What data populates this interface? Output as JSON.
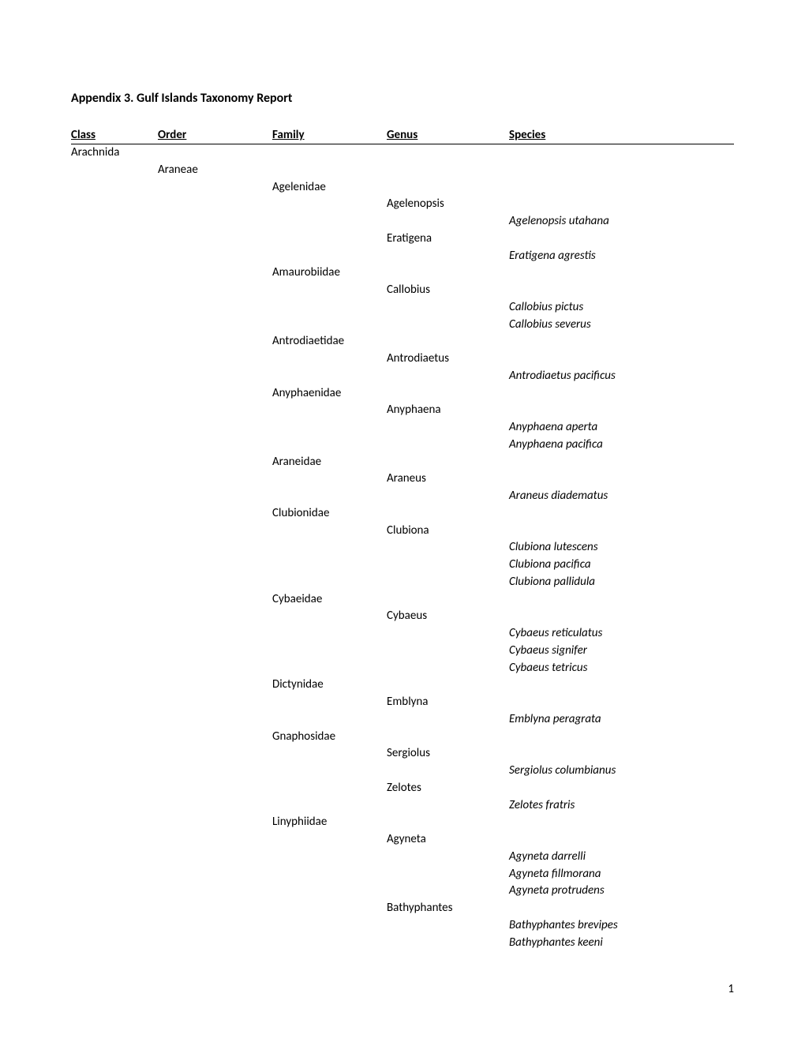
{
  "title": "Appendix 3. Gulf Islands Taxonomy Report",
  "headers": {
    "class": "Class",
    "order": "Order",
    "family": "Family",
    "genus": "Genus",
    "species": "Species"
  },
  "rows": [
    {
      "class": "Arachnida",
      "order": "",
      "family": "",
      "genus": "",
      "species": ""
    },
    {
      "class": "",
      "order": "Araneae",
      "family": "",
      "genus": "",
      "species": ""
    },
    {
      "class": "",
      "order": "",
      "family": "Agelenidae",
      "genus": "",
      "species": ""
    },
    {
      "class": "",
      "order": "",
      "family": "",
      "genus": "Agelenopsis",
      "species": ""
    },
    {
      "class": "",
      "order": "",
      "family": "",
      "genus": "",
      "species": "Agelenopsis utahana"
    },
    {
      "class": "",
      "order": "",
      "family": "",
      "genus": "Eratigena",
      "species": ""
    },
    {
      "class": "",
      "order": "",
      "family": "",
      "genus": "",
      "species": "Eratigena agrestis"
    },
    {
      "class": "",
      "order": "",
      "family": "Amaurobiidae",
      "genus": "",
      "species": ""
    },
    {
      "class": "",
      "order": "",
      "family": "",
      "genus": "Callobius",
      "species": ""
    },
    {
      "class": "",
      "order": "",
      "family": "",
      "genus": "",
      "species": "Callobius pictus"
    },
    {
      "class": "",
      "order": "",
      "family": "",
      "genus": "",
      "species": "Callobius severus"
    },
    {
      "class": "",
      "order": "",
      "family": "Antrodiaetidae",
      "genus": "",
      "species": ""
    },
    {
      "class": "",
      "order": "",
      "family": "",
      "genus": "Antrodiaetus",
      "species": ""
    },
    {
      "class": "",
      "order": "",
      "family": "",
      "genus": "",
      "species": "Antrodiaetus pacificus"
    },
    {
      "class": "",
      "order": "",
      "family": "Anyphaenidae",
      "genus": "",
      "species": ""
    },
    {
      "class": "",
      "order": "",
      "family": "",
      "genus": "Anyphaena",
      "species": ""
    },
    {
      "class": "",
      "order": "",
      "family": "",
      "genus": "",
      "species": "Anyphaena aperta"
    },
    {
      "class": "",
      "order": "",
      "family": "",
      "genus": "",
      "species": "Anyphaena pacifica"
    },
    {
      "class": "",
      "order": "",
      "family": "Araneidae",
      "genus": "",
      "species": ""
    },
    {
      "class": "",
      "order": "",
      "family": "",
      "genus": "Araneus",
      "species": ""
    },
    {
      "class": "",
      "order": "",
      "family": "",
      "genus": "",
      "species": "Araneus diadematus"
    },
    {
      "class": "",
      "order": "",
      "family": "Clubionidae",
      "genus": "",
      "species": ""
    },
    {
      "class": "",
      "order": "",
      "family": "",
      "genus": "Clubiona",
      "species": ""
    },
    {
      "class": "",
      "order": "",
      "family": "",
      "genus": "",
      "species": "Clubiona lutescens"
    },
    {
      "class": "",
      "order": "",
      "family": "",
      "genus": "",
      "species": "Clubiona pacifica"
    },
    {
      "class": "",
      "order": "",
      "family": "",
      "genus": "",
      "species": "Clubiona pallidula"
    },
    {
      "class": "",
      "order": "",
      "family": "Cybaeidae",
      "genus": "",
      "species": ""
    },
    {
      "class": "",
      "order": "",
      "family": "",
      "genus": "Cybaeus",
      "species": ""
    },
    {
      "class": "",
      "order": "",
      "family": "",
      "genus": "",
      "species": "Cybaeus reticulatus"
    },
    {
      "class": "",
      "order": "",
      "family": "",
      "genus": "",
      "species": "Cybaeus signifer"
    },
    {
      "class": "",
      "order": "",
      "family": "",
      "genus": "",
      "species": "Cybaeus tetricus"
    },
    {
      "class": "",
      "order": "",
      "family": "Dictynidae",
      "genus": "",
      "species": ""
    },
    {
      "class": "",
      "order": "",
      "family": "",
      "genus": "Emblyna",
      "species": ""
    },
    {
      "class": "",
      "order": "",
      "family": "",
      "genus": "",
      "species": "Emblyna peragrata"
    },
    {
      "class": "",
      "order": "",
      "family": "Gnaphosidae",
      "genus": "",
      "species": ""
    },
    {
      "class": "",
      "order": "",
      "family": "",
      "genus": "Sergiolus",
      "species": ""
    },
    {
      "class": "",
      "order": "",
      "family": "",
      "genus": "",
      "species": "Sergiolus columbianus"
    },
    {
      "class": "",
      "order": "",
      "family": "",
      "genus": "Zelotes",
      "species": ""
    },
    {
      "class": "",
      "order": "",
      "family": "",
      "genus": "",
      "species": "Zelotes fratris"
    },
    {
      "class": "",
      "order": "",
      "family": "Linyphiidae",
      "genus": "",
      "species": ""
    },
    {
      "class": "",
      "order": "",
      "family": "",
      "genus": "Agyneta",
      "species": ""
    },
    {
      "class": "",
      "order": "",
      "family": "",
      "genus": "",
      "species": "Agyneta darrelli"
    },
    {
      "class": "",
      "order": "",
      "family": "",
      "genus": "",
      "species": "Agyneta fillmorana"
    },
    {
      "class": "",
      "order": "",
      "family": "",
      "genus": "",
      "species": "Agyneta protrudens"
    },
    {
      "class": "",
      "order": "",
      "family": "",
      "genus": "Bathyphantes",
      "species": ""
    },
    {
      "class": "",
      "order": "",
      "family": "",
      "genus": "",
      "species": "Bathyphantes brevipes"
    },
    {
      "class": "",
      "order": "",
      "family": "",
      "genus": "",
      "species": "Bathyphantes keeni"
    }
  ],
  "pageNumber": "1"
}
